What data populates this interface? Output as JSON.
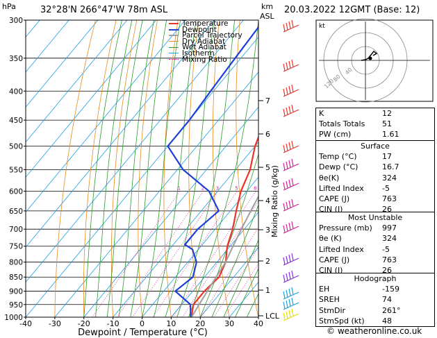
{
  "header": {
    "location": "32°28'N  266°47'W  78m  ASL",
    "datetime": "20.03.2022  12GMT  (Base: 12)",
    "hpa_label": "hPa",
    "km_label": "km",
    "asl_label": "ASL"
  },
  "legend": [
    "Temperature",
    "Dewpoint",
    "Parcel Trajectory",
    "Dry Adiabat",
    "Wet Adiabat",
    "Isotherm",
    "Mixing Ratio"
  ],
  "colors": {
    "temperature": "#e8342b",
    "dewpoint": "#1e3fd8",
    "parcel": "#a0a0a0",
    "dry_adiabat": "#e88a1c",
    "wet_adiabat": "#2c9b2c",
    "isotherm": "#1aa0e0",
    "mixing_ratio": "#d0209a"
  },
  "chart_data": {
    "type": "line",
    "xlabel": "Dewpoint / Temperature (°C)",
    "ylabel": "hPa",
    "y2label": "Mixing Ratio (g/kg)",
    "x_ticks": [
      "-40",
      "-30",
      "-20",
      "-10",
      "0",
      "10",
      "20",
      "30",
      "40"
    ],
    "pressure_ticks": [
      "300",
      "350",
      "400",
      "450",
      "500",
      "550",
      "600",
      "650",
      "700",
      "750",
      "800",
      "850",
      "900",
      "950",
      "1000"
    ],
    "km_ticks": [
      "7",
      "6",
      "5",
      "4",
      "3",
      "2",
      "1",
      "LCL"
    ],
    "mixing_ratio_labels": [
      "1",
      "2",
      "3",
      "5",
      "8",
      "10",
      "15",
      "20",
      "25"
    ],
    "series": [
      {
        "name": "Temperature",
        "points": [
          [
            17,
            1000
          ],
          [
            14,
            950
          ],
          [
            14,
            900
          ],
          [
            15,
            850
          ],
          [
            13,
            800
          ],
          [
            9,
            750
          ],
          [
            6,
            700
          ],
          [
            2,
            650
          ],
          [
            -2,
            600
          ],
          [
            -5,
            550
          ],
          [
            -10,
            500
          ],
          [
            -14,
            450
          ],
          [
            -18,
            400
          ],
          [
            -23,
            350
          ],
          [
            -28,
            300
          ]
        ]
      },
      {
        "name": "Dewpoint",
        "points": [
          [
            16.7,
            1000
          ],
          [
            13,
            950
          ],
          [
            4,
            900
          ],
          [
            6,
            850
          ],
          [
            3,
            800
          ],
          [
            -2,
            760
          ],
          [
            -6,
            745
          ],
          [
            -6,
            700
          ],
          [
            -4,
            650
          ],
          [
            -13,
            600
          ],
          [
            -28,
            550
          ],
          [
            -40,
            500
          ],
          [
            -40,
            450
          ],
          [
            -41,
            400
          ],
          [
            -42,
            350
          ],
          [
            -43,
            300
          ]
        ]
      },
      {
        "name": "Parcel Trajectory",
        "points": [
          [
            17,
            1000
          ],
          [
            16,
            950
          ],
          [
            15,
            900
          ],
          [
            14,
            850
          ],
          [
            13,
            800
          ],
          [
            11,
            750
          ],
          [
            9,
            700
          ],
          [
            7,
            650
          ],
          [
            5,
            600
          ],
          [
            2,
            550
          ],
          [
            -2,
            500
          ],
          [
            -7,
            450
          ],
          [
            -12,
            400
          ],
          [
            -17,
            350
          ],
          [
            -22,
            300
          ]
        ]
      }
    ]
  },
  "hodograph": {
    "label": "kt",
    "rings": [
      "40",
      "80",
      "120"
    ]
  },
  "indices": {
    "k_label": "K",
    "k": "12",
    "tt_label": "Totals Totals",
    "tt": "51",
    "pw_label": "PW (cm)",
    "pw": "1.61"
  },
  "surface": {
    "title": "Surface",
    "temp_label": "Temp (°C)",
    "temp": "17",
    "dewp_label": "Dewp (°C)",
    "dewp": "16.7",
    "theta_label": "θe(K)",
    "theta": "324",
    "li_label": "Lifted Index",
    "li": "-5",
    "cape_label": "CAPE (J)",
    "cape": "763",
    "cin_label": "CIN (J)",
    "cin": "26"
  },
  "most_unstable": {
    "title": "Most Unstable",
    "pres_label": "Pressure (mb)",
    "pres": "997",
    "theta_label": "θe (K)",
    "theta": "324",
    "li_label": "Lifted Index",
    "li": "-5",
    "cape_label": "CAPE (J)",
    "cape": "763",
    "cin_label": "CIN (J)",
    "cin": "26"
  },
  "hodo_table": {
    "title": "Hodograph",
    "eh_label": "EH",
    "eh": "-159",
    "sreh_label": "SREH",
    "sreh": "74",
    "stmdir_label": "StmDir",
    "stmdir": "261°",
    "stmspd_label": "StmSpd (kt)",
    "stmspd": "48"
  },
  "copyright": "© weatheronline.co.uk"
}
